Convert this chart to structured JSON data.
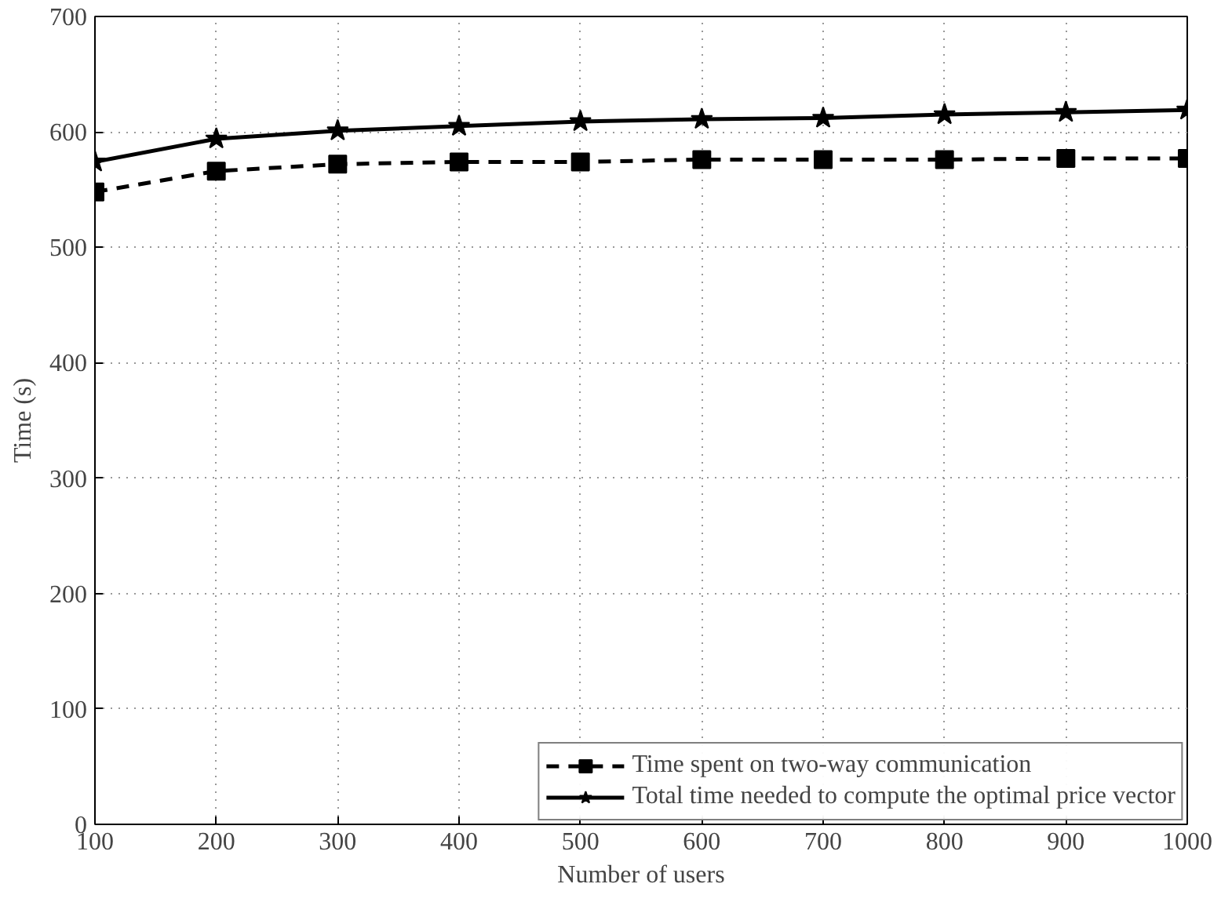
{
  "chart_data": {
    "type": "line",
    "xlabel": "Number of users",
    "ylabel": "Time (s)",
    "x": [
      100,
      200,
      300,
      400,
      500,
      600,
      700,
      800,
      900,
      1000
    ],
    "xlim": [
      100,
      1000
    ],
    "xticks": [
      100,
      200,
      300,
      400,
      500,
      600,
      700,
      800,
      900,
      1000
    ],
    "ylim": [
      0,
      700
    ],
    "yticks": [
      0,
      100,
      200,
      300,
      400,
      500,
      600,
      700
    ],
    "grid": true,
    "legend": "bottom right",
    "series": [
      {
        "name": "Time spent on two-way communication",
        "color": "#000000",
        "marker": "square",
        "line_style": "dashed",
        "values": [
          548,
          566,
          572,
          574,
          574,
          576,
          576,
          576,
          577,
          577
        ]
      },
      {
        "name": "Total time needed to compute the optimal price vector",
        "color": "#000000",
        "marker": "star",
        "line_style": "solid",
        "values": [
          574,
          594,
          601,
          605,
          609,
          611,
          612,
          615,
          617,
          619
        ]
      }
    ]
  }
}
